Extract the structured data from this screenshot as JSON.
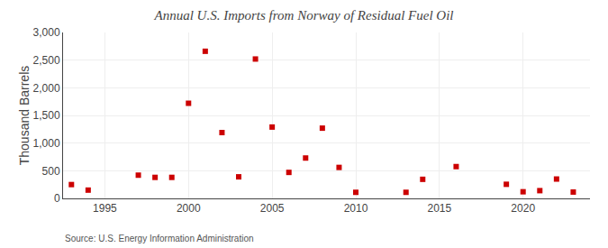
{
  "chart_data": {
    "type": "scatter",
    "title": "Annual U.S. Imports from Norway of Residual Fuel Oil",
    "ylabel": "Thousand Barrels",
    "annotations": [
      "Source: U.S. Energy Information Administration"
    ],
    "x": [
      1993,
      1994,
      1997,
      1998,
      1999,
      2000,
      2001,
      2002,
      2003,
      2004,
      2005,
      2006,
      2007,
      2008,
      2009,
      2010,
      2013,
      2014,
      2016,
      2019,
      2020,
      2021,
      2022,
      2023
    ],
    "values": [
      250,
      150,
      420,
      380,
      380,
      1720,
      2660,
      1190,
      390,
      2520,
      1290,
      470,
      730,
      1270,
      560,
      110,
      110,
      345,
      575,
      255,
      120,
      140,
      350,
      115
    ],
    "color": "#cc0000",
    "marker": "square",
    "xlim": [
      1992.5,
      2024
    ],
    "xticks": [
      1995,
      2000,
      2005,
      2010,
      2015,
      2020
    ],
    "ylim": [
      0,
      3000
    ],
    "yticks": [
      0,
      500,
      {
        "value": 1000,
        "label": "1,000"
      },
      {
        "value": 1500,
        "label": "1,500"
      },
      {
        "value": 2000,
        "label": "2,000"
      },
      {
        "value": 2500,
        "label": "2,500"
      },
      {
        "value": 3000,
        "label": "3,000"
      }
    ],
    "grid": true
  }
}
